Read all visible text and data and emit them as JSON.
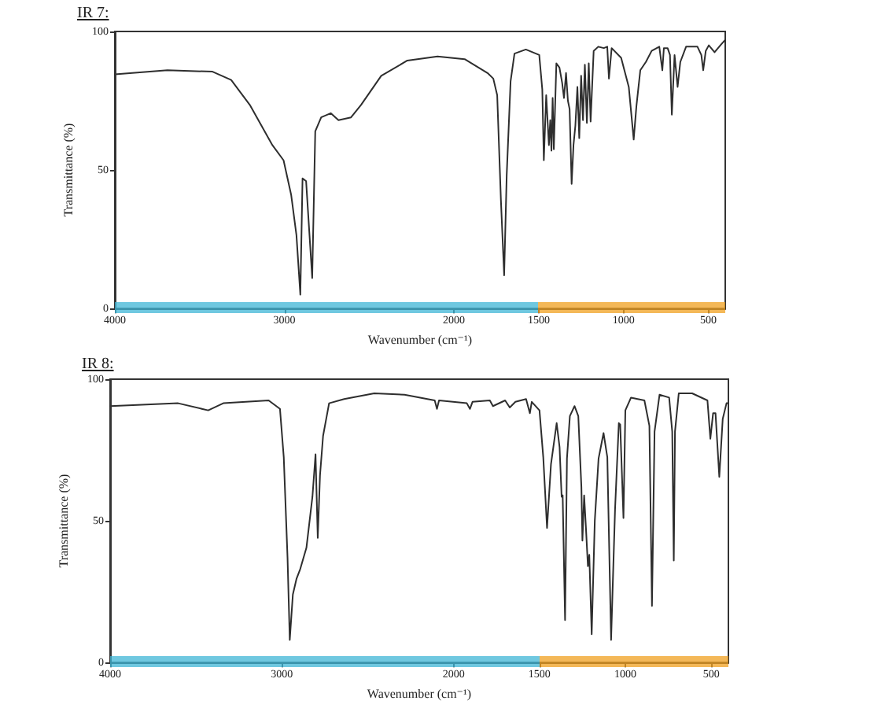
{
  "chart_data": [
    {
      "type": "line",
      "title": "IR 7:",
      "xlabel": "Wavenumber (cm⁻¹)",
      "ylabel": "Transmittance (%)",
      "color": "#2e2e2e",
      "marker": "none",
      "line_style": "solid",
      "xlim": [
        4000,
        400
      ],
      "xticks": [
        4000,
        3000,
        2000,
        1500,
        1000,
        500
      ],
      "ylim": [
        0,
        100
      ],
      "yticks": [
        0,
        50,
        100
      ],
      "x": [
        4000,
        3690,
        3424,
        3314,
        3204,
        3071,
        3005,
        2960,
        2929,
        2906,
        2893,
        2872,
        2836,
        2818,
        2783,
        2726,
        2681,
        2607,
        2548,
        2429,
        2275,
        2097,
        1937,
        1802,
        1768,
        1745,
        1723,
        1704,
        1689,
        1666,
        1643,
        1576,
        1497,
        1479,
        1470,
        1456,
        1440,
        1432,
        1425,
        1418,
        1411,
        1396,
        1378,
        1362,
        1351,
        1339,
        1328,
        1318,
        1306,
        1295,
        1284,
        1272,
        1261,
        1250,
        1239,
        1228,
        1216,
        1205,
        1194,
        1176,
        1149,
        1116,
        1096,
        1086,
        1070,
        1014,
        969,
        940,
        924,
        901,
        868,
        834,
        789,
        771,
        762,
        740,
        726,
        715,
        699,
        681,
        665,
        631,
        564,
        541,
        530,
        515,
        497,
        463,
        429,
        400
      ],
      "values": [
        84.5,
        86,
        85.5,
        82.5,
        73.5,
        59,
        53.5,
        41,
        26.5,
        5,
        47,
        46,
        11,
        64,
        69,
        70.5,
        68,
        69,
        73.5,
        84,
        89.5,
        91,
        90,
        85,
        83,
        77,
        39,
        12,
        48,
        82,
        92,
        93.5,
        91.5,
        79,
        53.5,
        77,
        59,
        68,
        57,
        76,
        57.5,
        88.5,
        87,
        81.5,
        76,
        85,
        75,
        72,
        45,
        59,
        66,
        80,
        61.5,
        84,
        68,
        88,
        67,
        88.5,
        67.5,
        93,
        94.5,
        94,
        94.5,
        83,
        94,
        90.5,
        80,
        61,
        73,
        86,
        89,
        93,
        94.5,
        86,
        94,
        94,
        91.5,
        70,
        91.5,
        80,
        89,
        94.5,
        94.5,
        91.5,
        86,
        93,
        95,
        92.5,
        95,
        97
      ]
    },
    {
      "type": "line",
      "title": "IR 8:",
      "xlabel": "Wavenumber (cm⁻¹)",
      "ylabel": "Transmittance (%)",
      "color": "#2e2e2e",
      "marker": "none",
      "line_style": "solid",
      "xlim": [
        4000,
        400
      ],
      "xticks": [
        4000,
        3000,
        2000,
        1500,
        1000,
        500
      ],
      "ylim": [
        0,
        100
      ],
      "yticks": [
        0,
        50,
        100
      ],
      "x": [
        4000,
        3604,
        3429,
        3341,
        3077,
        3011,
        2989,
        2967,
        2954,
        2936,
        2915,
        2893,
        2857,
        2822,
        2804,
        2791,
        2778,
        2760,
        2725,
        2637,
        2462,
        2286,
        2110,
        2097,
        2085,
        1923,
        1905,
        1890,
        1789,
        1771,
        1700,
        1673,
        1640,
        1578,
        1556,
        1545,
        1500,
        1478,
        1456,
        1433,
        1400,
        1383,
        1371,
        1365,
        1351,
        1340,
        1323,
        1296,
        1274,
        1256,
        1250,
        1240,
        1229,
        1218,
        1210,
        1196,
        1178,
        1156,
        1127,
        1105,
        1083,
        1060,
        1038,
        1030,
        1011,
        1000,
        967,
        889,
        860,
        845,
        830,
        801,
        745,
        727,
        718,
        711,
        689,
        611,
        522,
        505,
        489,
        475,
        453,
        433,
        411,
        400
      ],
      "values": [
        90.5,
        91.5,
        89,
        91.5,
        92.5,
        89.5,
        72.5,
        37,
        8,
        24,
        29.5,
        33,
        40.5,
        58.5,
        73.5,
        44,
        66,
        80,
        91.5,
        93,
        95,
        94.5,
        92.5,
        89.5,
        92.5,
        91.5,
        89.5,
        92,
        92.5,
        90.5,
        92.5,
        90,
        92,
        93,
        88,
        92,
        89,
        72.5,
        47.5,
        70,
        84.5,
        76,
        58.5,
        59,
        15,
        72,
        87,
        90.5,
        87,
        62,
        43,
        59,
        47,
        34,
        38,
        10,
        50,
        72,
        81,
        72.5,
        8,
        54,
        84.5,
        84,
        51,
        89,
        93.5,
        92.5,
        83.5,
        20,
        81.5,
        94.5,
        93.5,
        81.5,
        36,
        81.5,
        95,
        95,
        92.5,
        79,
        88,
        88,
        65.5,
        86,
        91.5,
        91.5
      ]
    }
  ]
}
